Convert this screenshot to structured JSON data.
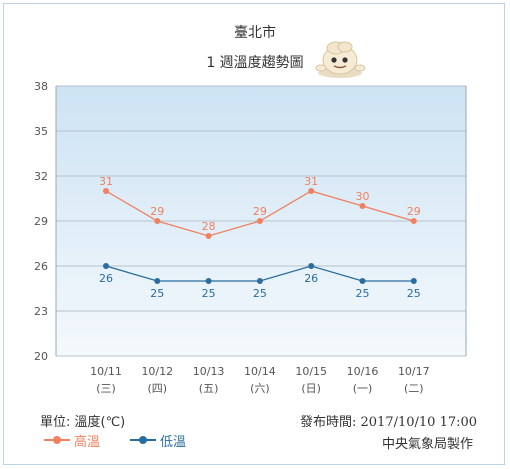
{
  "header": {
    "title": "臺北市",
    "subtitle": "1 週溫度趨勢圖"
  },
  "footer": {
    "unit": "單位: 溫度(℃)",
    "published": "發布時間: 2017/10/10 17:00",
    "credit": "中央氣象局製作"
  },
  "colors": {
    "high": "#f08060",
    "low": "#2b6d9e",
    "plot_bg_top": "#cde3f3",
    "plot_bg_bottom": "#f4f9fd",
    "grid": "#b7c1cb",
    "axis_text": "#555555"
  },
  "chart_data": {
    "type": "line",
    "categories": [
      "10/11",
      "10/12",
      "10/13",
      "10/14",
      "10/15",
      "10/16",
      "10/17"
    ],
    "weekdays": [
      "(三)",
      "(四)",
      "(五)",
      "(六)",
      "(日)",
      "(一)",
      "(二)"
    ],
    "yticks": [
      20,
      23,
      26,
      29,
      32,
      35,
      38
    ],
    "ylim": [
      20,
      38
    ],
    "grid": true,
    "legend_position": "bottom-left",
    "series": [
      {
        "name": "高溫",
        "key": "high",
        "values": [
          31,
          29,
          28,
          29,
          31,
          30,
          29
        ]
      },
      {
        "name": "低溫",
        "key": "low",
        "values": [
          26,
          25,
          25,
          25,
          26,
          25,
          25
        ]
      }
    ]
  }
}
